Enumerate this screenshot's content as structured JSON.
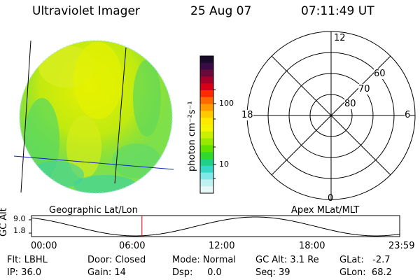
{
  "header": {
    "instrument": "Ultraviolet Imager",
    "date": "25 Aug 07",
    "time": "07:11:49  UT"
  },
  "colorbar": {
    "unit_label": "photon cm⁻²s⁻¹",
    "ticks": [
      "100",
      "10"
    ],
    "colors_top_to_bottom": [
      "#1a0a2a",
      "#3a0a44",
      "#6a0a3a",
      "#a4002a",
      "#d80018",
      "#ff2a00",
      "#ff6a00",
      "#ff9a00",
      "#ffc800",
      "#ffe800",
      "#f4f400",
      "#c8f000",
      "#96ea00",
      "#62e000",
      "#30d830",
      "#20d088",
      "#38d8c8",
      "#80e8e8",
      "#c0f0f0",
      "#e8f8f8"
    ]
  },
  "polar": {
    "lat_labels": [
      "60",
      "70",
      "80"
    ],
    "mlt_labels": [
      "12",
      "18",
      "6",
      "0"
    ]
  },
  "timeline": {
    "left_title": "Geographic Lat/Lon",
    "right_title": "Apex  MLat/MLT",
    "ylabel": "GC Alt",
    "ymax": "9.0",
    "ymin": "1.8",
    "xticks": [
      "00:00",
      "06:00",
      "12:00",
      "18:00",
      "23:59"
    ],
    "current_time_hours": 7.2,
    "marker_color": "#d00000"
  },
  "info": {
    "flt": "Flt: LBHL",
    "ip": "IP: 36.0",
    "door": "Door: Closed",
    "gain": "Gain: 14",
    "mode": "Mode: Normal",
    "dsp": "Dsp:     0.0",
    "gcalt": "GC Alt: 3.1 Re",
    "seq": "Seq: 39",
    "glat": "GLat:   -2.7",
    "glon": "GLon:  68.2"
  }
}
